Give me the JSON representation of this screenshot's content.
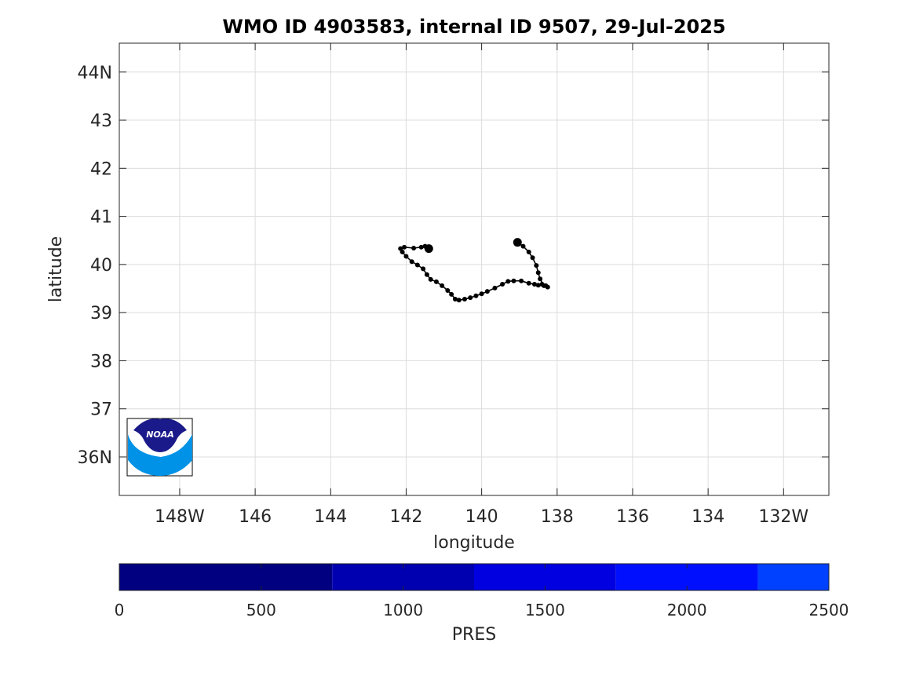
{
  "chart_data": {
    "type": "scatter",
    "title": "WMO ID 4903583, internal ID 9507, 29-Jul-2025",
    "xlabel": "longitude",
    "ylabel": "latitude",
    "xlim": [
      -149.6,
      -130.8
    ],
    "ylim": [
      35.2,
      44.6
    ],
    "x_ticks": [
      -148,
      -146,
      -144,
      -142,
      -140,
      -138,
      -136,
      -134,
      -132
    ],
    "x_tick_labels": [
      "148W",
      "146",
      "144",
      "142",
      "140",
      "138",
      "136",
      "134",
      "132W"
    ],
    "y_ticks": [
      36,
      37,
      38,
      39,
      40,
      41,
      42,
      43,
      44
    ],
    "y_tick_labels": [
      "36N",
      "37",
      "38",
      "39",
      "40",
      "41",
      "42",
      "43",
      "44N"
    ],
    "grid": true,
    "track_color": "#000000",
    "series": [
      {
        "x": [
          -141.4,
          -141.5,
          -141.6,
          -141.8,
          -142.05,
          -142.15,
          -142.1,
          -142.0,
          -141.85,
          -141.7,
          -141.55,
          -141.45,
          -141.35,
          -141.2,
          -141.05,
          -140.9,
          -140.8,
          -140.7,
          -140.6,
          -140.45,
          -140.3,
          -140.15,
          -140.0,
          -139.85,
          -139.65,
          -139.45,
          -139.3,
          -139.15,
          -138.95,
          -138.75,
          -138.6,
          -138.5,
          -138.4,
          -138.3,
          -138.25,
          -138.35,
          -138.45,
          -138.5,
          -138.55,
          -138.65,
          -138.75,
          -138.9,
          -139.05
        ],
        "y": [
          40.33,
          40.38,
          40.36,
          40.34,
          40.36,
          40.33,
          40.26,
          40.17,
          40.06,
          39.99,
          39.91,
          39.79,
          39.69,
          39.64,
          39.56,
          39.46,
          39.38,
          39.28,
          39.26,
          39.28,
          39.31,
          39.35,
          39.39,
          39.44,
          39.51,
          39.59,
          39.65,
          39.66,
          39.66,
          39.61,
          39.59,
          39.57,
          39.59,
          39.56,
          39.53,
          39.56,
          39.7,
          39.83,
          39.98,
          40.14,
          40.26,
          40.38,
          40.46
        ],
        "start_index": 0,
        "latest_index": 42
      }
    ],
    "colorbar": {
      "label": "PRES",
      "range": [
        0,
        2500
      ],
      "ticks": [
        0,
        500,
        1000,
        1500,
        2000,
        2500
      ],
      "bands": [
        {
          "from": 0,
          "to": 750,
          "color": "#000080"
        },
        {
          "from": 750,
          "to": 1250,
          "color": "#0000b0"
        },
        {
          "from": 1250,
          "to": 1750,
          "color": "#0000e0"
        },
        {
          "from": 1750,
          "to": 2250,
          "color": "#0010ff"
        },
        {
          "from": 2250,
          "to": 2500,
          "color": "#0040ff"
        }
      ]
    }
  },
  "logo": {
    "text": "NOAA",
    "colors": {
      "dark": "#1a1a8a",
      "light": "#0092e6"
    }
  }
}
